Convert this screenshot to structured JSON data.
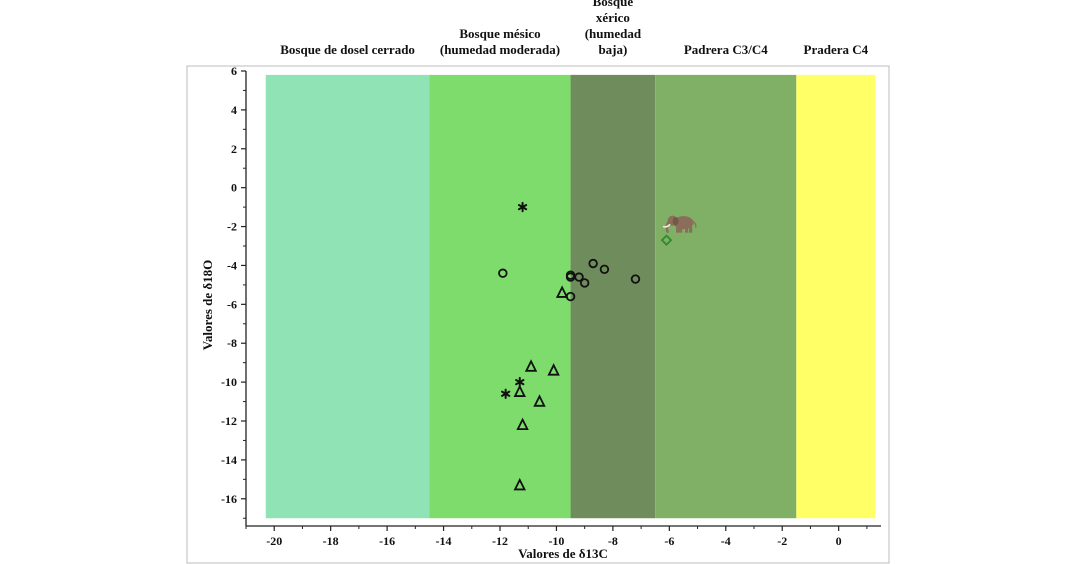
{
  "chart_data": {
    "type": "scatter",
    "xlabel": "Valores de δ13C",
    "ylabel": "Valores de δ18O",
    "xlim": [
      -21,
      1.5
    ],
    "ylim": [
      -17.4,
      6
    ],
    "x_ticks": [
      -20,
      -18,
      -16,
      -14,
      -12,
      -10,
      -8,
      -6,
      -4,
      -2,
      0
    ],
    "y_ticks": [
      6,
      4,
      2,
      0,
      -2,
      -4,
      -6,
      -8,
      -10,
      -12,
      -14,
      -16
    ],
    "grid": false,
    "zones": [
      {
        "lines": [
          "Bosque de dosel cerrado"
        ],
        "x_from": -20.3,
        "x_to": -14.5,
        "color": "#8fe3b4"
      },
      {
        "lines": [
          "Bosque mésico",
          "(humedad moderada)"
        ],
        "x_from": -14.5,
        "x_to": -9.5,
        "color": "#7ddc6c"
      },
      {
        "lines": [
          "Bosque",
          "xérico",
          "(humedad",
          "baja)"
        ],
        "x_from": -9.5,
        "x_to": -6.5,
        "color": "#6f8c5c"
      },
      {
        "lines": [
          "Padrera C3/C4"
        ],
        "x_from": -6.5,
        "x_to": -1.5,
        "color": "#80b066"
      },
      {
        "lines": [
          "Pradera C4"
        ],
        "x_from": -1.5,
        "x_to": 1.3,
        "color": "#ffff66"
      }
    ],
    "series": [
      {
        "marker": "circle",
        "color": "#111111",
        "points": [
          {
            "x": -11.9,
            "y": -4.4
          },
          {
            "x": -9.5,
            "y": -4.5
          },
          {
            "x": -9.5,
            "y": -4.6
          },
          {
            "x": -9.2,
            "y": -4.6
          },
          {
            "x": -9.0,
            "y": -4.9
          },
          {
            "x": -8.7,
            "y": -3.9
          },
          {
            "x": -8.3,
            "y": -4.2
          },
          {
            "x": -7.2,
            "y": -4.7
          },
          {
            "x": -9.5,
            "y": -5.6
          }
        ]
      },
      {
        "marker": "triangle",
        "color": "#111111",
        "points": [
          {
            "x": -9.8,
            "y": -5.4
          },
          {
            "x": -10.9,
            "y": -9.2
          },
          {
            "x": -10.1,
            "y": -9.4
          },
          {
            "x": -11.3,
            "y": -10.5
          },
          {
            "x": -10.6,
            "y": -11.0
          },
          {
            "x": -11.2,
            "y": -12.2
          },
          {
            "x": -11.3,
            "y": -15.3
          }
        ]
      },
      {
        "marker": "star",
        "color": "#111111",
        "points": [
          {
            "x": -11.2,
            "y": -1.0
          },
          {
            "x": -11.3,
            "y": -10.0
          },
          {
            "x": -11.8,
            "y": -10.6
          }
        ]
      },
      {
        "marker": "diamond",
        "color": "#2e8b2e",
        "points": [
          {
            "x": -6.1,
            "y": -2.7
          }
        ]
      }
    ],
    "annotations": [
      {
        "icon": "elephant-icon",
        "x": -5.6,
        "y": -1.8,
        "color": "#8a6e5a"
      }
    ]
  }
}
